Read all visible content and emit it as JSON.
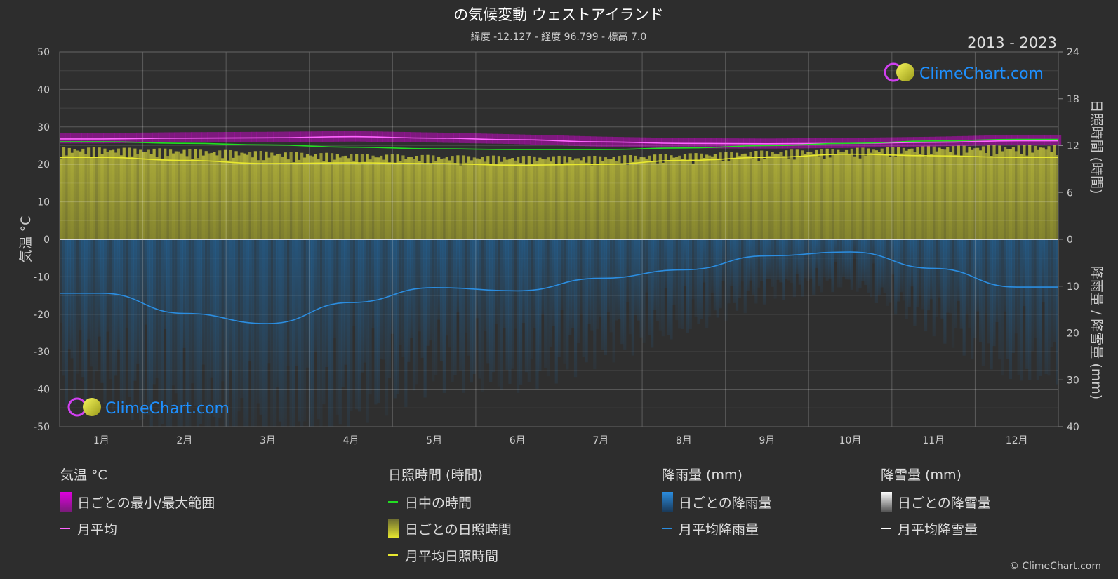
{
  "header": {
    "title": "の気候変動 ウェストアイランド",
    "subtitle": "緯度 -12.127 - 経度 96.799 - 標高 7.0",
    "period": "2013 - 2023"
  },
  "watermark": {
    "text": "ClimeChart.com"
  },
  "copyright": "© ClimeChart.com",
  "colors": {
    "background": "#2d2d2d",
    "temp_range": "#e000e0",
    "temp_avg": "#ff66ff",
    "daylight": "#22dd22",
    "sunshine_bar": "#c8c832",
    "sunshine_avg": "#e8e830",
    "rain_bar": "#1f6fb0",
    "rain_avg": "#2b8de0",
    "snow_avg": "#ffffff",
    "brand_blue": "#1e90ff"
  },
  "chart_data": {
    "type": "line",
    "x": [
      "1月",
      "2月",
      "3月",
      "4月",
      "5月",
      "6月",
      "7月",
      "8月",
      "9月",
      "10月",
      "11月",
      "12月"
    ],
    "xlabel": "",
    "ylabel_left": "気温 °C",
    "ylabel_right_top": "日照時間 (時間)",
    "ylabel_right_bottom": "降雨量 / 降雪量 (mm)",
    "ylim_left": [
      -50,
      50
    ],
    "yticks_left": [
      "50",
      "40",
      "30",
      "20",
      "10",
      "0",
      "-10",
      "-20",
      "-30",
      "-40",
      "-50"
    ],
    "ylim_right_top": [
      0,
      24
    ],
    "yticks_right_top": [
      "24",
      "18",
      "12",
      "6",
      "0"
    ],
    "ylim_right_bottom": [
      0,
      40
    ],
    "yticks_right_bottom": [
      "0",
      "10",
      "20",
      "30",
      "40"
    ],
    "grid": true,
    "series": [
      {
        "name": "月平均",
        "axis": "temperature_c",
        "values": [
          26.8,
          27.0,
          27.1,
          27.4,
          27.0,
          26.6,
          26.0,
          25.6,
          25.5,
          25.6,
          25.9,
          26.3
        ]
      },
      {
        "name": "日ごとの最小/最大範囲",
        "axis": "temperature_c",
        "min": [
          25.6,
          25.9,
          25.9,
          26.1,
          25.8,
          25.4,
          24.7,
          24.3,
          24.2,
          24.4,
          24.8,
          25.2
        ],
        "max": [
          28.4,
          28.6,
          28.7,
          28.9,
          28.5,
          28.0,
          27.4,
          27.0,
          26.9,
          27.1,
          27.4,
          27.9
        ]
      },
      {
        "name": "日中の時間",
        "axis": "sunshine_h",
        "values": [
          12.5,
          12.3,
          12.1,
          11.8,
          11.6,
          11.5,
          11.5,
          11.7,
          12.0,
          12.3,
          12.6,
          12.8
        ]
      },
      {
        "name": "月平均日照時間",
        "axis": "sunshine_h",
        "values": [
          10.5,
          10.1,
          9.7,
          9.8,
          9.7,
          9.5,
          9.6,
          10.1,
          10.5,
          10.9,
          10.7,
          10.5
        ]
      },
      {
        "name": "日ごとの日照時間",
        "axis": "sunshine_h",
        "values": [
          11.8,
          11.6,
          11.3,
          11.0,
          10.8,
          10.7,
          10.7,
          11.0,
          11.4,
          11.7,
          12.0,
          12.1
        ]
      },
      {
        "name": "月平均降雨量",
        "axis": "rain_mm",
        "values": [
          11.5,
          15.8,
          18.0,
          13.5,
          10.3,
          11.0,
          8.3,
          6.5,
          3.5,
          2.7,
          6.2,
          10.2
        ]
      }
    ]
  },
  "legend": {
    "groups": [
      {
        "title": "気温 °C",
        "items": [
          {
            "label": "日ごとの最小/最大範囲",
            "swatch": "box",
            "color": "#e000e0"
          },
          {
            "label": "月平均",
            "swatch": "line",
            "color": "#ff66ff"
          }
        ]
      },
      {
        "title": "日照時間 (時間)",
        "items": [
          {
            "label": "日中の時間",
            "swatch": "line",
            "color": "#22dd22"
          },
          {
            "label": "日ごとの日照時間",
            "swatch": "box",
            "color": "#c8c832"
          },
          {
            "label": "月平均日照時間",
            "swatch": "line",
            "color": "#e8e830"
          }
        ]
      },
      {
        "title": "降雨量 (mm)",
        "items": [
          {
            "label": "日ごとの降雨量",
            "swatch": "box",
            "color": "#1f6fb0"
          },
          {
            "label": "月平均降雨量",
            "swatch": "line",
            "color": "#2b8de0"
          }
        ]
      },
      {
        "title": "降雪量 (mm)",
        "items": [
          {
            "label": "日ごとの降雪量",
            "swatch": "box",
            "color": "#dddddd"
          },
          {
            "label": "月平均降雪量",
            "swatch": "line",
            "color": "#ffffff"
          }
        ]
      }
    ]
  }
}
